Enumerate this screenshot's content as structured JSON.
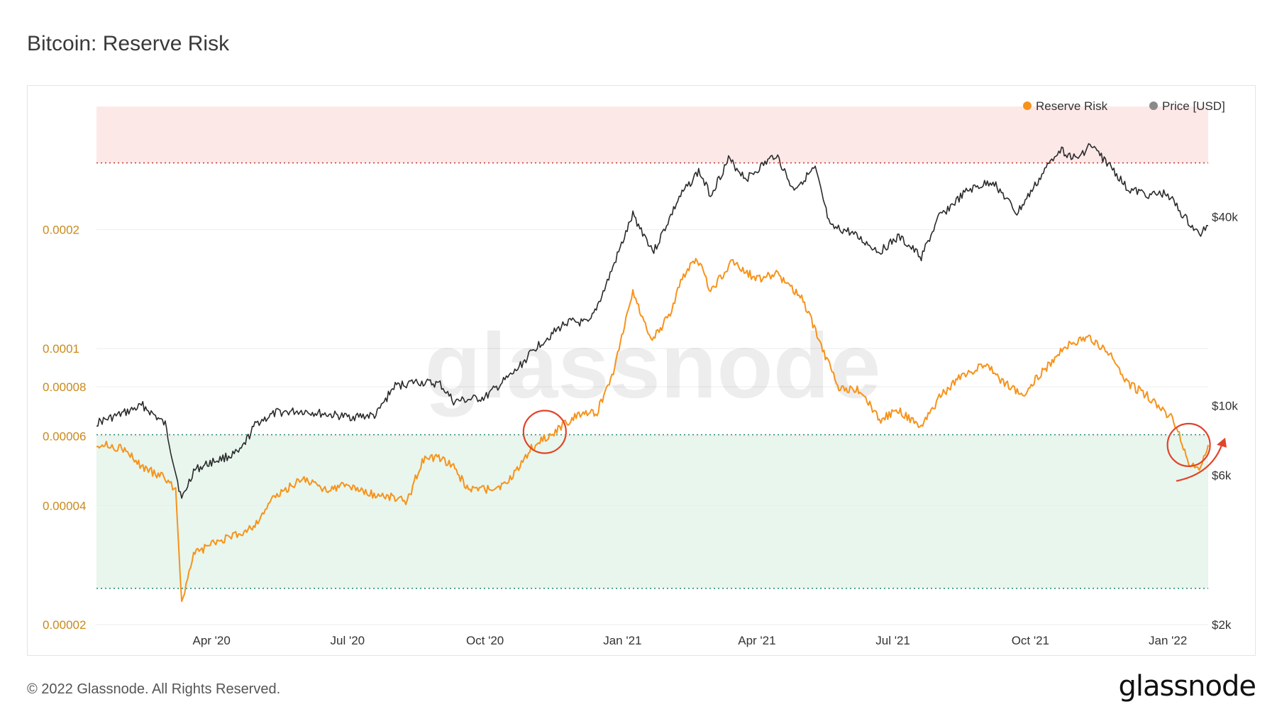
{
  "title": "Bitcoin: Reserve Risk",
  "footer": "© 2022 Glassnode. All Rights Reserved.",
  "brand": "glassnode",
  "watermark": "glassnode",
  "colors": {
    "reserve_risk": "#f7931a",
    "price": "#2b2b2b",
    "red_zone": "#fde8e8",
    "green_zone": "#e8f6ee",
    "annotation": "#e0452b",
    "left_tick": "#c98a1b"
  },
  "legend": [
    {
      "label": "Reserve Risk",
      "color": "#f7931a"
    },
    {
      "label": "Price [USD]",
      "color": "#8a8a8a"
    }
  ],
  "chart_data": {
    "type": "line",
    "x_ticks": [
      "Apr '20",
      "Jul '20",
      "Oct '20",
      "Jan '21",
      "Apr '21",
      "Jul '21",
      "Oct '21",
      "Jan '22"
    ],
    "x_range": [
      "2020-01-15",
      "2022-01-28"
    ],
    "left_axis": {
      "scale": "log",
      "ticks": [
        "0.0002",
        "0.0001",
        "0.00008",
        "0.00006",
        "0.00004",
        "0.00002"
      ],
      "range": [
        2e-05,
        0.00041
      ]
    },
    "right_axis": {
      "scale": "log",
      "ticks": [
        "$40k",
        "$10k",
        "$6k",
        "$2k"
      ],
      "range": [
        2000,
        90000
      ]
    },
    "bands": [
      {
        "name": "",
        "from": 0.000295,
        "to": 0.00041,
        "color": "#fde8e8"
      },
      {
        "name": "",
        "from": 2.47e-05,
        "to": 6.05e-05,
        "color": "#e8f6ee"
      }
    ],
    "series": [
      {
        "name": "Reserve Risk",
        "axis": "left",
        "points": [
          [
            "2020-01-15",
            5.75e-05
          ],
          [
            "2020-02-01",
            5.6e-05
          ],
          [
            "2020-02-15",
            5e-05
          ],
          [
            "2020-03-01",
            4.7e-05
          ],
          [
            "2020-03-08",
            4.4e-05
          ],
          [
            "2020-03-12",
            2.3e-05
          ],
          [
            "2020-03-20",
            3e-05
          ],
          [
            "2020-04-01",
            3.2e-05
          ],
          [
            "2020-04-20",
            3.4e-05
          ],
          [
            "2020-05-01",
            3.6e-05
          ],
          [
            "2020-05-10",
            4.1e-05
          ],
          [
            "2020-06-01",
            4.7e-05
          ],
          [
            "2020-06-15",
            4.4e-05
          ],
          [
            "2020-07-01",
            4.5e-05
          ],
          [
            "2020-07-15",
            4.3e-05
          ],
          [
            "2020-08-01",
            4.2e-05
          ],
          [
            "2020-08-10",
            4.1e-05
          ],
          [
            "2020-08-20",
            5.2e-05
          ],
          [
            "2020-09-01",
            5.3e-05
          ],
          [
            "2020-09-10",
            5e-05
          ],
          [
            "2020-09-20",
            4.4e-05
          ],
          [
            "2020-10-01",
            4.4e-05
          ],
          [
            "2020-10-15",
            4.5e-05
          ],
          [
            "2020-11-01",
            5.6e-05
          ],
          [
            "2020-11-20",
            6.3e-05
          ],
          [
            "2020-12-01",
            6.8e-05
          ],
          [
            "2020-12-15",
            6.9e-05
          ],
          [
            "2020-12-25",
            8.5e-05
          ],
          [
            "2021-01-08",
            0.00014
          ],
          [
            "2021-01-20",
            0.000105
          ],
          [
            "2021-02-01",
            0.00012
          ],
          [
            "2021-02-10",
            0.00015
          ],
          [
            "2021-02-20",
            0.00017
          ],
          [
            "2021-03-01",
            0.00014
          ],
          [
            "2021-03-15",
            0.000165
          ],
          [
            "2021-04-01",
            0.00015
          ],
          [
            "2021-04-14",
            0.000155
          ],
          [
            "2021-05-01",
            0.000135
          ],
          [
            "2021-05-15",
            0.0001
          ],
          [
            "2021-05-25",
            8e-05
          ],
          [
            "2021-06-10",
            7.8e-05
          ],
          [
            "2021-06-22",
            6.6e-05
          ],
          [
            "2021-07-05",
            7e-05
          ],
          [
            "2021-07-20",
            6.3e-05
          ],
          [
            "2021-08-01",
            7.5e-05
          ],
          [
            "2021-08-15",
            8.5e-05
          ],
          [
            "2021-09-01",
            9.1e-05
          ],
          [
            "2021-09-10",
            8.4e-05
          ],
          [
            "2021-09-25",
            7.6e-05
          ],
          [
            "2021-10-10",
            8.8e-05
          ],
          [
            "2021-10-25",
            0.000102
          ],
          [
            "2021-11-10",
            0.000106
          ],
          [
            "2021-11-25",
            9.5e-05
          ],
          [
            "2021-12-05",
            8.2e-05
          ],
          [
            "2021-12-20",
            7.5e-05
          ],
          [
            "2022-01-05",
            6.6e-05
          ],
          [
            "2022-01-15",
            5.1e-05
          ],
          [
            "2022-01-22",
            5e-05
          ],
          [
            "2022-01-28",
            5.7e-05
          ]
        ]
      },
      {
        "name": "Price [USD]",
        "axis": "right",
        "points": [
          [
            "2020-01-15",
            8800
          ],
          [
            "2020-02-01",
            9400
          ],
          [
            "2020-02-15",
            10000
          ],
          [
            "2020-03-01",
            8700
          ],
          [
            "2020-03-12",
            5000
          ],
          [
            "2020-03-20",
            6200
          ],
          [
            "2020-04-01",
            6600
          ],
          [
            "2020-04-20",
            7100
          ],
          [
            "2020-05-01",
            8800
          ],
          [
            "2020-05-15",
            9500
          ],
          [
            "2020-06-01",
            9600
          ],
          [
            "2020-06-15",
            9400
          ],
          [
            "2020-07-01",
            9200
          ],
          [
            "2020-07-20",
            9300
          ],
          [
            "2020-08-01",
            11500
          ],
          [
            "2020-08-15",
            11900
          ],
          [
            "2020-09-01",
            11700
          ],
          [
            "2020-09-10",
            10300
          ],
          [
            "2020-10-01",
            10600
          ],
          [
            "2020-10-21",
            12800
          ],
          [
            "2020-11-05",
            15500
          ],
          [
            "2020-11-25",
            18500
          ],
          [
            "2020-12-10",
            18300
          ],
          [
            "2020-12-20",
            23500
          ],
          [
            "2021-01-08",
            40500
          ],
          [
            "2021-01-22",
            31000
          ],
          [
            "2021-02-08",
            46000
          ],
          [
            "2021-02-21",
            56000
          ],
          [
            "2021-03-01",
            47000
          ],
          [
            "2021-03-13",
            61000
          ],
          [
            "2021-03-25",
            53000
          ],
          [
            "2021-04-14",
            63500
          ],
          [
            "2021-04-25",
            49000
          ],
          [
            "2021-05-10",
            57000
          ],
          [
            "2021-05-20",
            37000
          ],
          [
            "2021-06-01",
            36000
          ],
          [
            "2021-06-22",
            31000
          ],
          [
            "2021-07-05",
            34500
          ],
          [
            "2021-07-20",
            29800
          ],
          [
            "2021-08-01",
            40000
          ],
          [
            "2021-08-20",
            48500
          ],
          [
            "2021-09-06",
            52000
          ],
          [
            "2021-09-22",
            41000
          ],
          [
            "2021-10-05",
            51000
          ],
          [
            "2021-10-20",
            66000
          ],
          [
            "2021-11-01",
            61000
          ],
          [
            "2021-11-10",
            68000
          ],
          [
            "2021-11-25",
            57000
          ],
          [
            "2021-12-05",
            49000
          ],
          [
            "2021-12-20",
            47000
          ],
          [
            "2022-01-01",
            47500
          ],
          [
            "2022-01-10",
            41000
          ],
          [
            "2022-01-22",
            35000
          ],
          [
            "2022-01-28",
            37500
          ]
        ]
      }
    ],
    "annotations": [
      {
        "type": "circle",
        "x": "2020-11-10",
        "y": 6.15e-05
      },
      {
        "type": "circle",
        "x": "2022-01-15",
        "y": 5.7e-05
      },
      {
        "type": "arrow",
        "x": "2022-01-28",
        "y": 5.8e-05
      }
    ]
  }
}
